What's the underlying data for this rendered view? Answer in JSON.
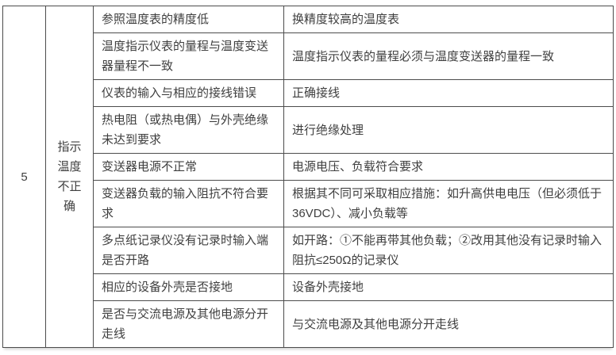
{
  "colors": {
    "border": "#4c4c4c",
    "text": "#3f3f3f",
    "background": "#ffffff"
  },
  "table": {
    "row_number": "5",
    "fault_name": "指示温度不正确",
    "rows": [
      {
        "cause": "参照温度表的精度低",
        "solution": "换精度较高的温度表"
      },
      {
        "cause": "温度指示仪表的量程与温度变送器量程不一致",
        "solution": "温度指示仪表的量程必须与温度变送器的量程一致"
      },
      {
        "cause": "仪表的输入与相应的接线错误",
        "solution": "正确接线"
      },
      {
        "cause": "热电阻（或热电偶）与外壳绝缘未达到要求",
        "solution": "进行绝缘处理"
      },
      {
        "cause": "变送器电源不正常",
        "solution": "电源电压、负载符合要求"
      },
      {
        "cause": "变送器负载的输入阻抗不符合要求",
        "solution": "根据其不同可采取相应措施：如升高供电电压（但必须低于36VDC）、减小负载等"
      },
      {
        "cause": "多点纸记录仪没有记录时输入端是否开路",
        "solution": "如开路：①不能再带其他负载；②改用其他没有记录时输入阻抗≤250Ω的记录仪"
      },
      {
        "cause": "相应的设备外壳是否接地",
        "solution": "设备外壳接地"
      },
      {
        "cause": "是否与交流电源及其他电源分开走线",
        "solution": "与交流电源及其他电源分开走线"
      }
    ]
  }
}
